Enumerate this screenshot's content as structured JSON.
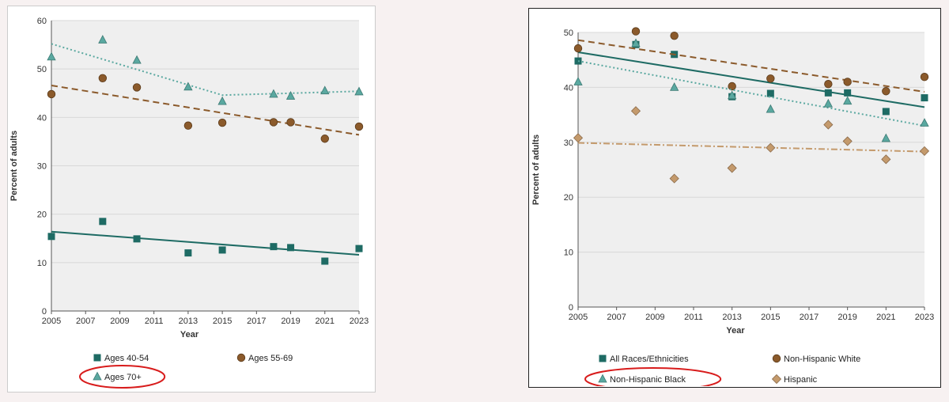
{
  "colors": {
    "teal": "#1e6b64",
    "tealLight": "#5aa8a0",
    "brown": "#8b5a2b",
    "brownLight": "#b07a3a",
    "tan": "#c49a6c",
    "highlight": "#d81c1c",
    "grid": "#d8d8d8",
    "plotBg": "#efefef"
  },
  "chart_data": [
    {
      "type": "scatter",
      "id": "left",
      "xlabel": "Year",
      "ylabel": "Percent of adults",
      "xlim": [
        2005,
        2023
      ],
      "ylim": [
        0,
        60
      ],
      "xticks": [
        2005,
        2007,
        2009,
        2011,
        2013,
        2015,
        2017,
        2019,
        2021,
        2023
      ],
      "yticks": [
        0,
        10,
        20,
        30,
        40,
        50,
        60
      ],
      "grid": true,
      "series": [
        {
          "name": "Ages 40-54",
          "marker": "square",
          "color": "#1e6b64",
          "points": [
            [
              2005,
              15.4
            ],
            [
              2008,
              18.5
            ],
            [
              2010,
              14.9
            ],
            [
              2013,
              12.0
            ],
            [
              2015,
              12.6
            ],
            [
              2018,
              13.3
            ],
            [
              2019,
              13.1
            ],
            [
              2021,
              10.3
            ],
            [
              2023,
              12.9
            ]
          ],
          "trend": {
            "style": "solid",
            "points": [
              [
                2005,
                16.4
              ],
              [
                2023,
                11.6
              ]
            ]
          }
        },
        {
          "name": "Ages 55-69",
          "marker": "circle",
          "color": "#8b5a2b",
          "points": [
            [
              2005,
              44.8
            ],
            [
              2008,
              48.1
            ],
            [
              2010,
              46.2
            ],
            [
              2013,
              38.3
            ],
            [
              2015,
              38.9
            ],
            [
              2018,
              39.0
            ],
            [
              2019,
              39.0
            ],
            [
              2021,
              35.6
            ],
            [
              2023,
              38.1
            ]
          ],
          "trend": {
            "style": "dashed",
            "points": [
              [
                2005,
                46.6
              ],
              [
                2023,
                36.4
              ]
            ]
          }
        },
        {
          "name": "Ages 70+",
          "marker": "triangle",
          "color": "#5aa8a0",
          "points": [
            [
              2005,
              52.5
            ],
            [
              2008,
              56.0
            ],
            [
              2010,
              51.8
            ],
            [
              2013,
              46.3
            ],
            [
              2015,
              43.3
            ],
            [
              2018,
              44.8
            ],
            [
              2019,
              44.4
            ],
            [
              2021,
              45.5
            ],
            [
              2023,
              45.3
            ]
          ],
          "trend": {
            "style": "dotted",
            "points": [
              [
                2005,
                55.2
              ],
              [
                2010,
                49.9
              ],
              [
                2015,
                44.6
              ],
              [
                2019,
                45.0
              ],
              [
                2023,
                45.4
              ]
            ]
          }
        }
      ],
      "legend": [
        {
          "label": "Ages 40-54",
          "marker": "square",
          "color": "#1e6b64",
          "highlight": false
        },
        {
          "label": "Ages 55-69",
          "marker": "circle",
          "color": "#8b5a2b",
          "highlight": false
        },
        {
          "label": "Ages 70+",
          "marker": "triangle",
          "color": "#5aa8a0",
          "highlight": true
        }
      ]
    },
    {
      "type": "scatter",
      "id": "right",
      "xlabel": "Year",
      "ylabel": "Percent of adults",
      "xlim": [
        2005,
        2023
      ],
      "ylim": [
        0,
        50
      ],
      "xticks": [
        2005,
        2007,
        2009,
        2011,
        2013,
        2015,
        2017,
        2019,
        2021,
        2023
      ],
      "yticks": [
        0,
        10,
        20,
        30,
        40,
        50
      ],
      "grid": true,
      "series": [
        {
          "name": "All Races/Ethnicities",
          "marker": "square",
          "color": "#1e6b64",
          "points": [
            [
              2005,
              44.8
            ],
            [
              2008,
              47.8
            ],
            [
              2010,
              46.0
            ],
            [
              2013,
              38.3
            ],
            [
              2015,
              38.9
            ],
            [
              2018,
              39.0
            ],
            [
              2019,
              39.0
            ],
            [
              2021,
              35.6
            ],
            [
              2023,
              38.1
            ]
          ],
          "trend": {
            "style": "solid",
            "points": [
              [
                2005,
                46.4
              ],
              [
                2023,
                36.4
              ]
            ]
          }
        },
        {
          "name": "Non-Hispanic White",
          "marker": "circle",
          "color": "#8b5a2b",
          "points": [
            [
              2005,
              47.1
            ],
            [
              2008,
              50.2
            ],
            [
              2010,
              49.4
            ],
            [
              2013,
              40.2
            ],
            [
              2015,
              41.6
            ],
            [
              2018,
              40.6
            ],
            [
              2019,
              41.0
            ],
            [
              2021,
              39.3
            ],
            [
              2023,
              41.9
            ]
          ],
          "trend": {
            "style": "dashed",
            "points": [
              [
                2005,
                48.6
              ],
              [
                2023,
                39.2
              ]
            ]
          }
        },
        {
          "name": "Non-Hispanic Black",
          "marker": "triangle",
          "color": "#5aa8a0",
          "points": [
            [
              2005,
              41.0
            ],
            [
              2008,
              48.0
            ],
            [
              2010,
              40.0
            ],
            [
              2013,
              38.5
            ],
            [
              2015,
              36.0
            ],
            [
              2018,
              37.0
            ],
            [
              2019,
              37.5
            ],
            [
              2021,
              30.7
            ],
            [
              2023,
              33.5
            ]
          ],
          "trend": {
            "style": "dotted",
            "points": [
              [
                2005,
                44.8
              ],
              [
                2023,
                33.0
              ]
            ]
          }
        },
        {
          "name": "Hispanic",
          "marker": "diamond",
          "color": "#c49a6c",
          "points": [
            [
              2005,
              30.8
            ],
            [
              2008,
              35.7
            ],
            [
              2010,
              23.4
            ],
            [
              2013,
              25.3
            ],
            [
              2015,
              29.0
            ],
            [
              2018,
              33.2
            ],
            [
              2019,
              30.2
            ],
            [
              2021,
              26.9
            ],
            [
              2023,
              28.4
            ]
          ],
          "trend": {
            "style": "dashdot",
            "points": [
              [
                2005,
                29.9
              ],
              [
                2023,
                28.3
              ]
            ]
          }
        }
      ],
      "legend": [
        {
          "label": "All Races/Ethnicities",
          "marker": "square",
          "color": "#1e6b64",
          "highlight": false
        },
        {
          "label": "Non-Hispanic White",
          "marker": "circle",
          "color": "#8b5a2b",
          "highlight": false
        },
        {
          "label": "Non-Hispanic Black",
          "marker": "triangle",
          "color": "#5aa8a0",
          "highlight": true
        },
        {
          "label": "Hispanic",
          "marker": "diamond",
          "color": "#c49a6c",
          "highlight": false
        }
      ]
    }
  ]
}
